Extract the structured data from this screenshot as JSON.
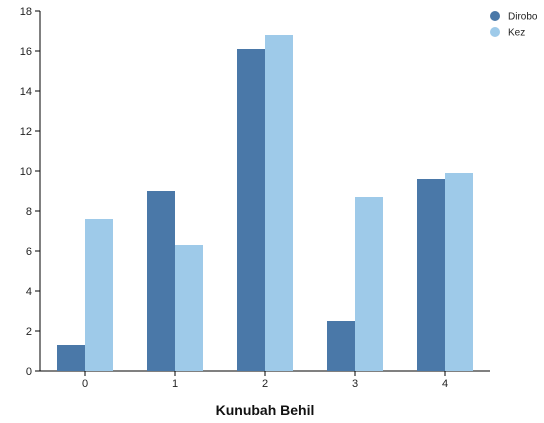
{
  "chart_data": {
    "type": "bar",
    "categories": [
      "0",
      "1",
      "2",
      "3",
      "4"
    ],
    "series": [
      {
        "name": "Dirobo",
        "color": "#4a78a8",
        "values": [
          1.3,
          9.0,
          16.1,
          2.5,
          9.6
        ]
      },
      {
        "name": "Kez",
        "color": "#9ecae9",
        "values": [
          7.6,
          6.3,
          16.8,
          8.7,
          9.9
        ]
      }
    ],
    "xlabel": "Kunubah Behil",
    "ylabel": "",
    "ylim": [
      0,
      18
    ],
    "yticks": [
      "0",
      "2",
      "4",
      "6",
      "8",
      "10",
      "12",
      "14",
      "16",
      "18"
    ],
    "grid": false,
    "legend_position": "top-right"
  }
}
